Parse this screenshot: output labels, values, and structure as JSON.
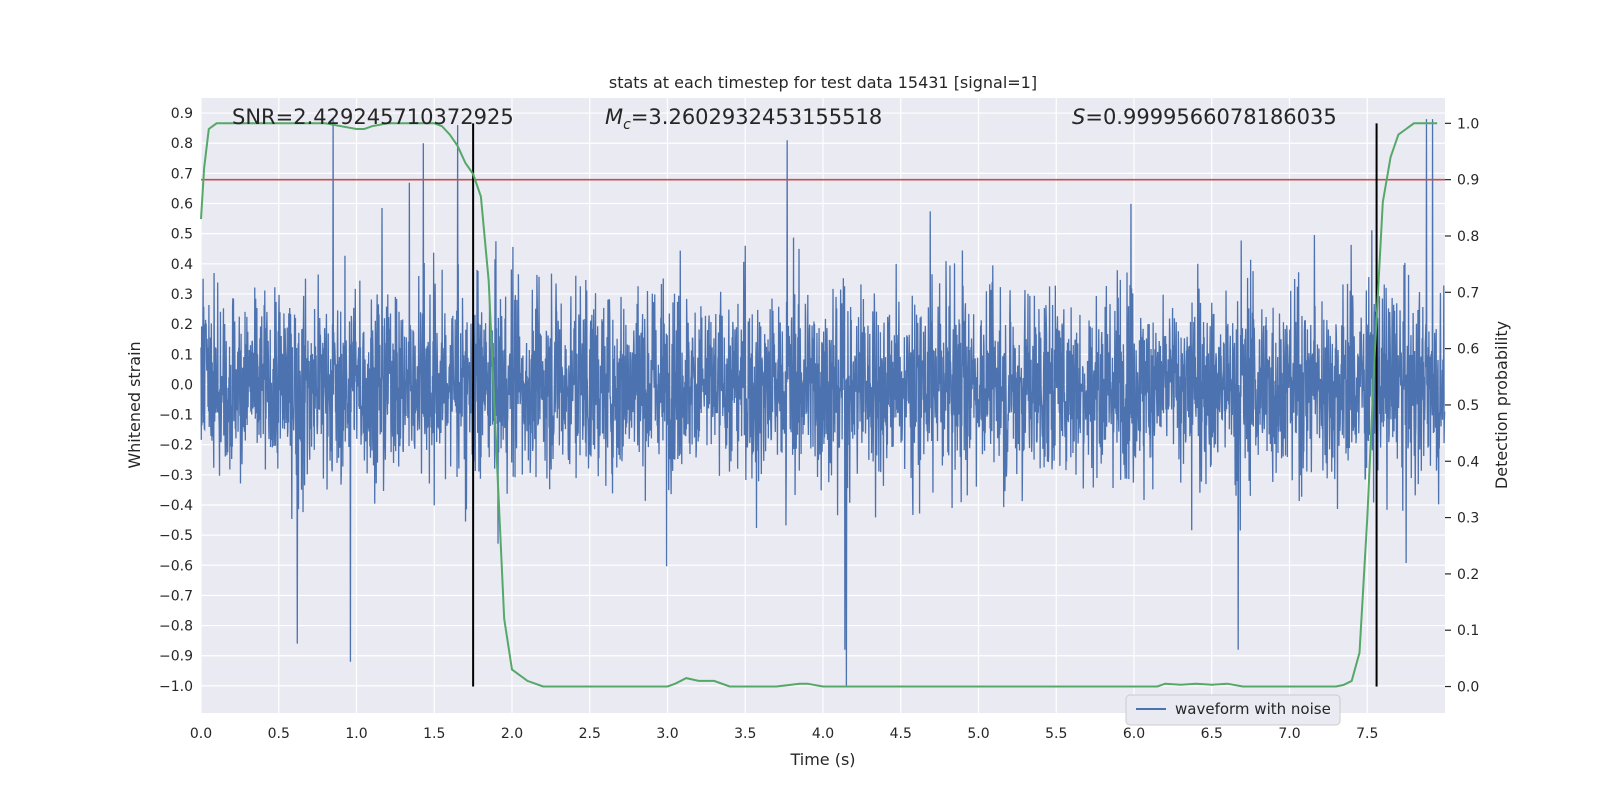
{
  "chart_data": {
    "type": "line",
    "title": "stats at each timestep for test data 15431 [signal=1]",
    "xlabel": "Time (s)",
    "ylabel": "Whitened strain",
    "y2label": "Detection probability",
    "xlim": [
      0,
      8
    ],
    "ylim": [
      -1.09,
      0.95
    ],
    "y2lim": [
      -0.047,
      1.045
    ],
    "xticks": [
      "0.0",
      "0.5",
      "1.0",
      "1.5",
      "2.0",
      "2.5",
      "3.0",
      "3.5",
      "4.0",
      "4.5",
      "5.0",
      "5.5",
      "6.0",
      "6.5",
      "7.0",
      "7.5"
    ],
    "yticks": [
      "−1.0",
      "−0.9",
      "−0.8",
      "−0.7",
      "−0.6",
      "−0.5",
      "−0.4",
      "−0.3",
      "−0.2",
      "−0.1",
      "0.0",
      "0.1",
      "0.2",
      "0.3",
      "0.4",
      "0.5",
      "0.6",
      "0.7",
      "0.8",
      "0.9"
    ],
    "y2ticks": [
      "0.0",
      "0.1",
      "0.2",
      "0.3",
      "0.4",
      "0.5",
      "0.6",
      "0.7",
      "0.8",
      "0.9",
      "1.0"
    ],
    "grid": true,
    "legend": {
      "position": "bottom-right",
      "entries": [
        "waveform with noise"
      ]
    },
    "annotations": {
      "snr": "SNR=2.429245710372925",
      "mc_symbol": "M",
      "mc_sub": "c",
      "mc_value": "=3.2602932453155518",
      "s_symbol": "S",
      "s_value": "=0.9999566078186035"
    },
    "threshold_line": {
      "axis": "y2",
      "value": 0.9
    },
    "vertical_lines_x": [
      1.75,
      7.56
    ],
    "series": [
      {
        "name": "waveform with noise",
        "axis": "y",
        "description": "noisy whitened strain, sampled densely 0–8 s",
        "sample_rate": 512,
        "core_amplitude": 0.29,
        "notable_peaks": [
          {
            "x": 0.85,
            "y": 0.88
          },
          {
            "x": 1.65,
            "y": 0.86
          },
          {
            "x": 1.43,
            "y": 0.8
          },
          {
            "x": 3.77,
            "y": 0.81
          },
          {
            "x": 7.88,
            "y": 0.88
          },
          {
            "x": 7.92,
            "y": 0.88
          }
        ],
        "notable_troughs": [
          {
            "x": 0.96,
            "y": -0.92
          },
          {
            "x": 4.15,
            "y": -1.0
          },
          {
            "x": 4.14,
            "y": -0.88
          },
          {
            "x": 0.62,
            "y": -0.86
          },
          {
            "x": 6.67,
            "y": -0.88
          }
        ]
      },
      {
        "name": "detection probability",
        "axis": "y2",
        "x": [
          0.0,
          0.02,
          0.05,
          0.1,
          0.2,
          0.4,
          0.6,
          0.8,
          0.9,
          1.0,
          1.05,
          1.1,
          1.2,
          1.3,
          1.4,
          1.5,
          1.55,
          1.6,
          1.65,
          1.7,
          1.75,
          1.8,
          1.85,
          1.9,
          1.95,
          2.0,
          2.1,
          2.2,
          2.5,
          2.8,
          3.0,
          3.05,
          3.12,
          3.2,
          3.3,
          3.4,
          3.5,
          3.7,
          3.85,
          3.9,
          4.0,
          4.2,
          4.5,
          5.0,
          5.5,
          6.0,
          6.15,
          6.2,
          6.3,
          6.4,
          6.5,
          6.6,
          6.7,
          7.0,
          7.2,
          7.3,
          7.35,
          7.4,
          7.45,
          7.5,
          7.55,
          7.6,
          7.65,
          7.7,
          7.75,
          7.8,
          7.9,
          7.95
        ],
        "y": [
          0.83,
          0.92,
          0.99,
          1.0,
          1.0,
          1.0,
          1.0,
          1.0,
          0.995,
          0.99,
          0.99,
          0.995,
          1.0,
          1.0,
          1.0,
          1.0,
          0.995,
          0.98,
          0.96,
          0.93,
          0.91,
          0.87,
          0.72,
          0.42,
          0.12,
          0.03,
          0.01,
          0.0,
          0.0,
          0.0,
          0.0,
          0.005,
          0.015,
          0.01,
          0.01,
          0.0,
          0.0,
          0.0,
          0.005,
          0.005,
          0.0,
          0.0,
          0.0,
          0.0,
          0.0,
          0.0,
          0.0,
          0.005,
          0.003,
          0.005,
          0.003,
          0.005,
          0.0,
          0.0,
          0.0,
          0.0,
          0.003,
          0.01,
          0.06,
          0.3,
          0.6,
          0.86,
          0.94,
          0.98,
          0.99,
          1.0,
          1.0,
          1.0
        ]
      }
    ],
    "colors": {
      "background": "#eaeaf2",
      "grid": "#ffffff",
      "waveform": "#4c72b0",
      "probability": "#55a868",
      "threshold": "#c44e52",
      "vlines": "#000000"
    }
  }
}
